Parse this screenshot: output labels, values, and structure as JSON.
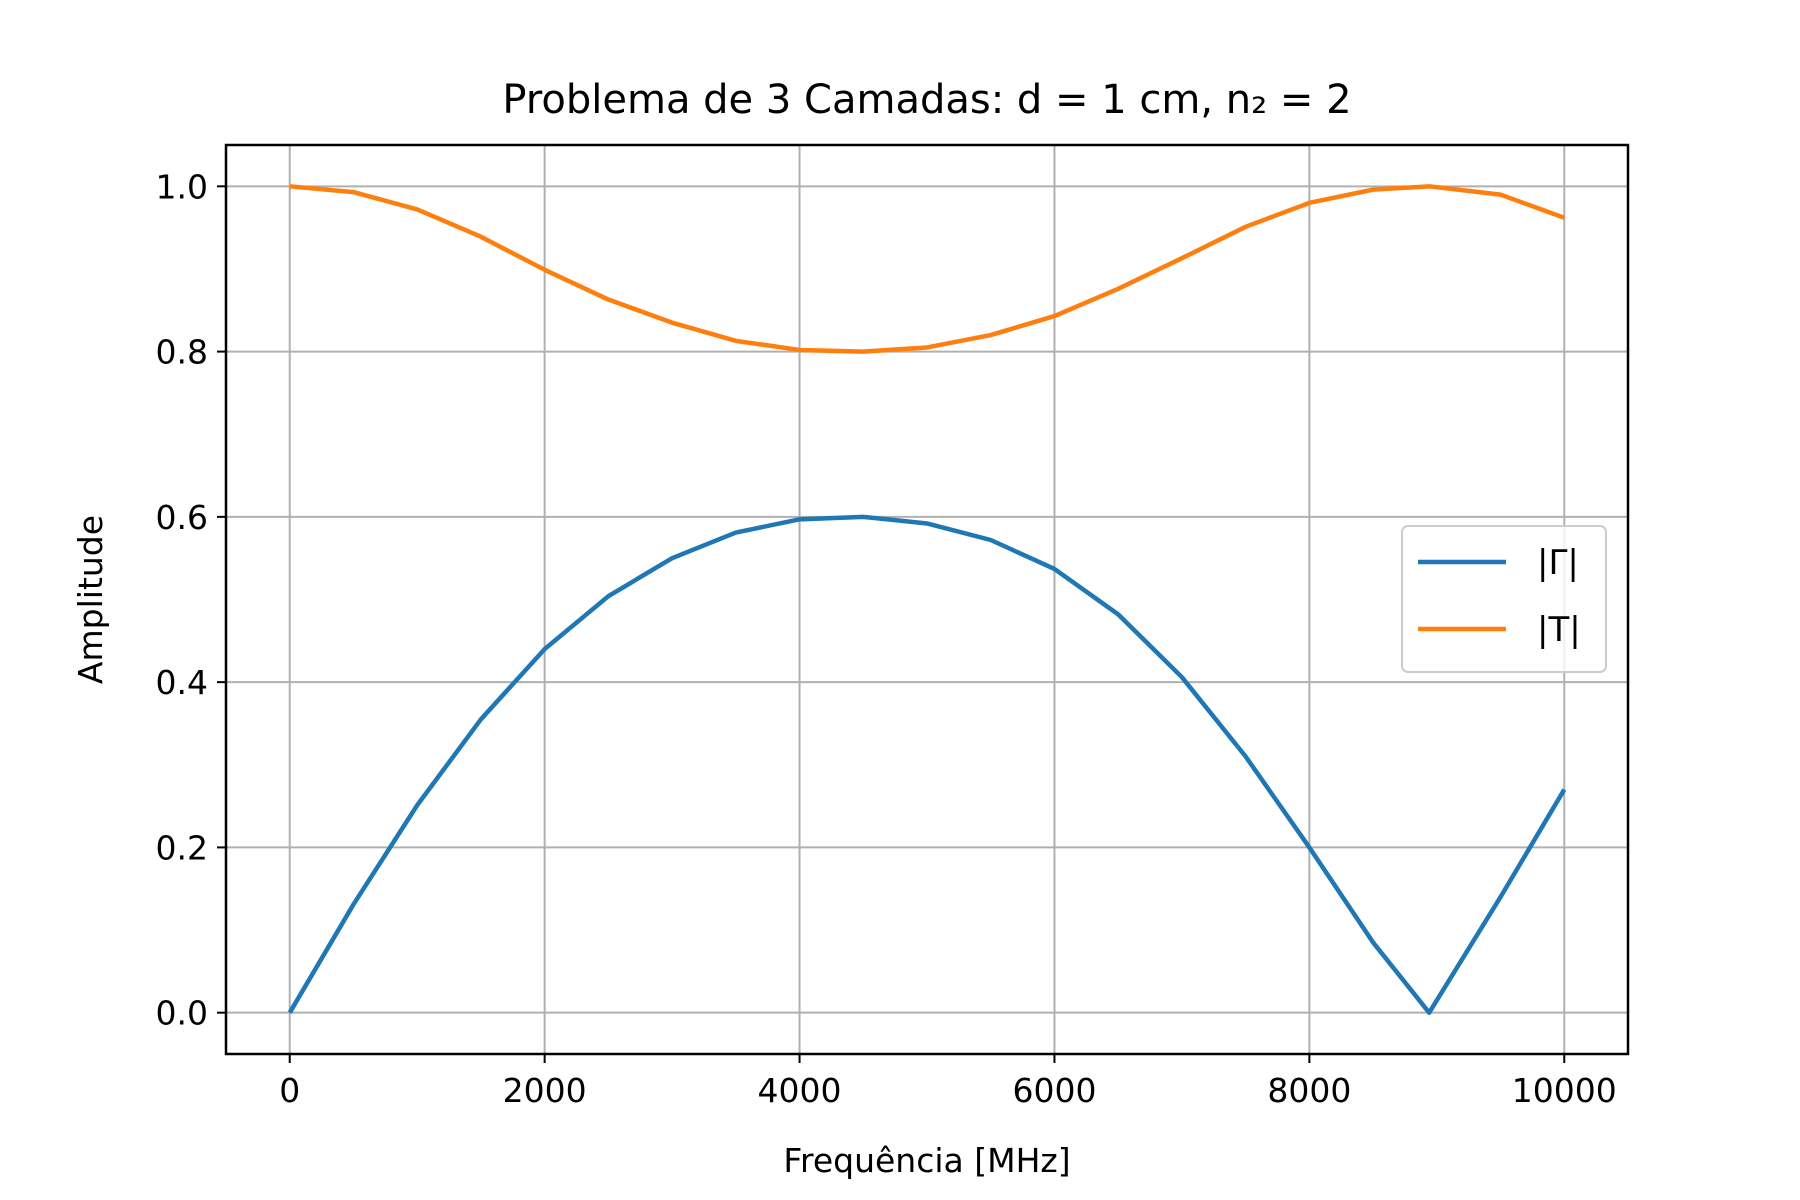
{
  "chart_data": {
    "type": "line",
    "title": "Problema de 3 Camadas: d = 1 cm, n₂ = 2",
    "xlabel": "Frequência [MHz]",
    "ylabel": "Amplitude",
    "xlim": [
      -500,
      10500
    ],
    "ylim": [
      -0.05,
      1.05
    ],
    "xticks": [
      0,
      2000,
      4000,
      6000,
      8000,
      10000
    ],
    "xtick_labels": [
      "0",
      "2000",
      "4000",
      "6000",
      "8000",
      "10000"
    ],
    "yticks": [
      0.0,
      0.2,
      0.4,
      0.6,
      0.8,
      1.0
    ],
    "ytick_labels": [
      "0.0",
      "0.2",
      "0.4",
      "0.6",
      "0.8",
      "1.0"
    ],
    "grid": true,
    "legend_position": "center-right",
    "x": [
      0,
      500,
      1000,
      1500,
      2000,
      2500,
      3000,
      3500,
      4000,
      4500,
      5000,
      5500,
      6000,
      6500,
      7000,
      7500,
      8000,
      8500,
      8940,
      9500,
      10000
    ],
    "series": [
      {
        "name": "|Γ|",
        "color": "#1f77b4",
        "values": [
          0.0,
          0.131,
          0.251,
          0.355,
          0.44,
          0.504,
          0.55,
          0.581,
          0.597,
          0.6,
          0.592,
          0.572,
          0.537,
          0.482,
          0.406,
          0.31,
          0.2,
          0.085,
          0.0,
          0.14,
          0.27
        ]
      },
      {
        "name": "|T|",
        "color": "#ff7f0e",
        "values": [
          1.0,
          0.993,
          0.972,
          0.939,
          0.899,
          0.863,
          0.835,
          0.813,
          0.802,
          0.8,
          0.805,
          0.82,
          0.843,
          0.876,
          0.913,
          0.951,
          0.98,
          0.996,
          1.0,
          0.99,
          0.962
        ]
      }
    ]
  }
}
